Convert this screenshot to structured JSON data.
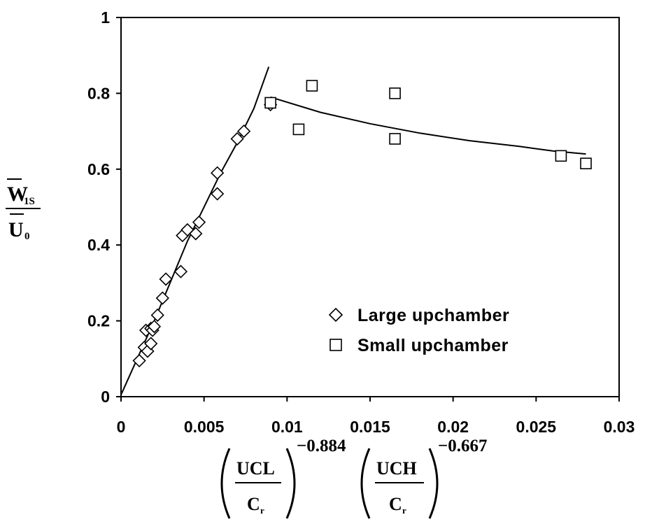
{
  "chart_data": {
    "type": "scatter",
    "xlim": [
      0,
      0.03
    ],
    "ylim": [
      0,
      1
    ],
    "x_ticks": [
      "0",
      "0.005",
      "0.01",
      "0.015",
      "0.02",
      "0.025",
      "0.03"
    ],
    "y_ticks": [
      "0",
      "0.2",
      "0.4",
      "0.6",
      "0.8",
      "1"
    ],
    "ylabel": {
      "numerator_base": "W",
      "numerator_sub": "1S",
      "denominator_base": "U",
      "denominator_sub": "0"
    },
    "xlabel": {
      "term1_num": "UCL",
      "term1_den_base": "C",
      "term1_den_sub": "r",
      "term1_exp": "−0.884",
      "term2_num": "UCH",
      "term2_den_base": "C",
      "term2_den_sub": "r",
      "term2_exp": "−0.667"
    },
    "legend_position": "lower-right",
    "series": [
      {
        "name": "Large upchamber",
        "marker": "diamond",
        "points": [
          [
            0.0011,
            0.095
          ],
          [
            0.0014,
            0.13
          ],
          [
            0.0015,
            0.175
          ],
          [
            0.0016,
            0.12
          ],
          [
            0.0018,
            0.14
          ],
          [
            0.0018,
            0.18
          ],
          [
            0.0019,
            0.175
          ],
          [
            0.002,
            0.185
          ],
          [
            0.0022,
            0.215
          ],
          [
            0.0025,
            0.26
          ],
          [
            0.0027,
            0.31
          ],
          [
            0.0036,
            0.33
          ],
          [
            0.0037,
            0.425
          ],
          [
            0.004,
            0.44
          ],
          [
            0.0045,
            0.43
          ],
          [
            0.0047,
            0.46
          ],
          [
            0.0058,
            0.535
          ],
          [
            0.0058,
            0.59
          ],
          [
            0.007,
            0.68
          ],
          [
            0.0074,
            0.7
          ],
          [
            0.009,
            0.77
          ]
        ]
      },
      {
        "name": "Small upchamber",
        "marker": "square",
        "points": [
          [
            0.009,
            0.775
          ],
          [
            0.0107,
            0.705
          ],
          [
            0.0115,
            0.82
          ],
          [
            0.0165,
            0.8
          ],
          [
            0.0165,
            0.68
          ],
          [
            0.0265,
            0.635
          ],
          [
            0.028,
            0.615
          ]
        ]
      }
    ],
    "fit_lines": [
      {
        "points": [
          [
            0.0,
            0.005
          ],
          [
            0.002,
            0.2
          ],
          [
            0.004,
            0.41
          ],
          [
            0.006,
            0.59
          ],
          [
            0.007,
            0.67
          ],
          [
            0.008,
            0.76
          ],
          [
            0.0089,
            0.87
          ]
        ]
      },
      {
        "points": [
          [
            0.009,
            0.79
          ],
          [
            0.012,
            0.75
          ],
          [
            0.015,
            0.72
          ],
          [
            0.018,
            0.695
          ],
          [
            0.021,
            0.675
          ],
          [
            0.024,
            0.66
          ],
          [
            0.026,
            0.648
          ],
          [
            0.028,
            0.64
          ]
        ]
      }
    ]
  }
}
